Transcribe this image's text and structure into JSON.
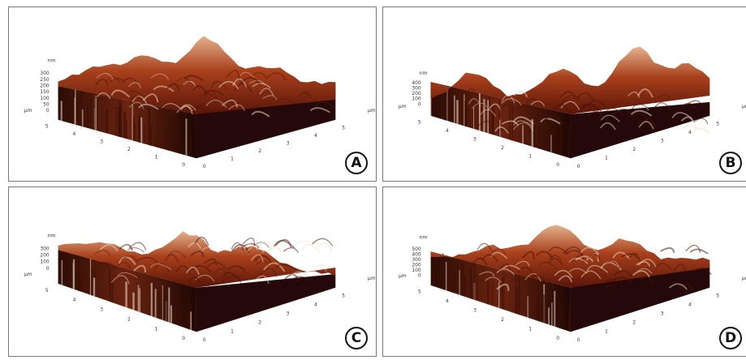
{
  "panels": [
    {
      "id": "A",
      "letter": "A",
      "unit_z": "nm",
      "unit_xy": "µm",
      "z_ticks": [
        "300",
        "250",
        "200",
        "150",
        "100",
        "50",
        "0"
      ],
      "y_ticks": [
        "5",
        "4",
        "3",
        "2",
        "1",
        "0"
      ],
      "x_ticks": [
        "0",
        "1",
        "2",
        "3",
        "4",
        "5"
      ]
    },
    {
      "id": "B",
      "letter": "B",
      "unit_z": "nm",
      "unit_xy": "µm",
      "z_ticks": [
        "400",
        "300",
        "200",
        "100",
        "0"
      ],
      "y_ticks": [
        "5",
        "4",
        "3",
        "2",
        "1",
        "0"
      ],
      "x_ticks": [
        "0",
        "1",
        "2",
        "3",
        "4",
        "5"
      ]
    },
    {
      "id": "C",
      "letter": "C",
      "unit_z": "nm",
      "unit_xy": "µm",
      "z_ticks": [
        "300",
        "200",
        "100",
        "0"
      ],
      "y_ticks": [
        "5",
        "4",
        "3",
        "2",
        "1",
        "0"
      ],
      "x_ticks": [
        "0",
        "1",
        "2",
        "3",
        "4",
        "5"
      ]
    },
    {
      "id": "D",
      "letter": "D",
      "unit_z": "nm",
      "unit_xy": "µm",
      "z_ticks": [
        "500",
        "400",
        "300",
        "200",
        "100",
        "0"
      ],
      "y_ticks": [
        "5",
        "4",
        "3",
        "2",
        "1",
        "0"
      ],
      "x_ticks": [
        "0",
        "1",
        "2",
        "3",
        "4",
        "5"
      ]
    }
  ],
  "colors": {
    "surface_dark": "#5a1508",
    "surface_mid": "#a8401c",
    "surface_light": "#e3b28c",
    "highlight": "#f2efe9"
  }
}
